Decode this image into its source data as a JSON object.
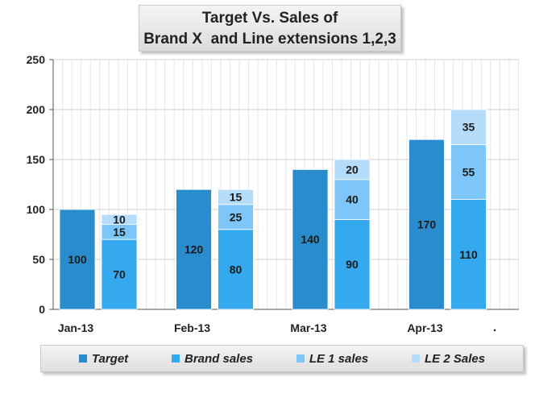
{
  "chart_data": {
    "type": "bar",
    "title_lines": [
      "Target Vs. Sales of",
      "Brand X  and Line extensions 1,2,3"
    ],
    "categories": [
      "Jan-13",
      "Feb-13",
      "Mar-13",
      "Apr-13"
    ],
    "ylim": [
      0,
      250
    ],
    "yticks": [
      0,
      50,
      100,
      150,
      200,
      250
    ],
    "grid": true,
    "legend_position": "bottom",
    "series": [
      {
        "name": "Target",
        "stack": "target",
        "values": [
          100,
          120,
          140,
          170
        ],
        "color": "#2a8ccc",
        "label_color": "#1a1a1a"
      },
      {
        "name": "Brand sales",
        "stack": "sales",
        "values": [
          70,
          80,
          90,
          110
        ],
        "color": "#35a9ee",
        "label_color": "#1a1a1a"
      },
      {
        "name": "LE 1 sales",
        "stack": "sales",
        "values": [
          15,
          25,
          40,
          55
        ],
        "color": "#7dc6f7",
        "label_color": "#1a1a1a"
      },
      {
        "name": "LE 2 Sales",
        "stack": "sales",
        "values": [
          10,
          15,
          20,
          35
        ],
        "color": "#b5dcfb",
        "label_color": "#1a1a1a"
      }
    ],
    "stray_mark": "."
  }
}
